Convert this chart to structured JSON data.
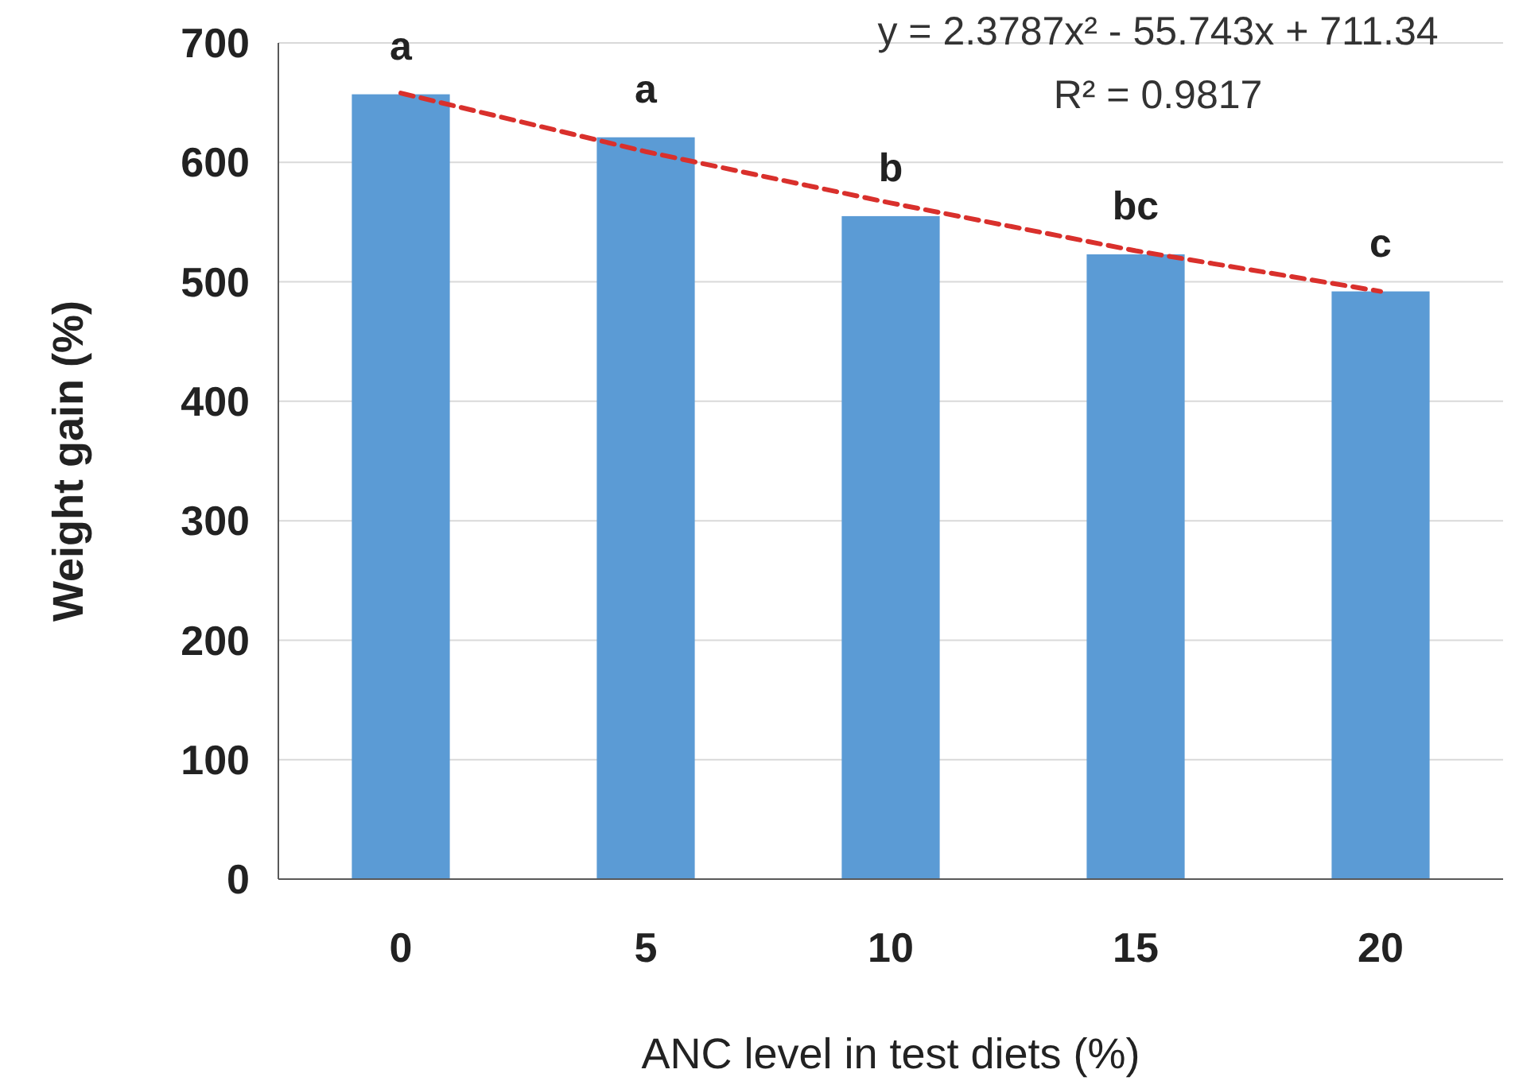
{
  "chart_data": {
    "type": "bar",
    "xlabel": "ANC level in test diets (%)",
    "ylabel": "Weight gain (%)",
    "categories": [
      "0",
      "5",
      "10",
      "15",
      "20"
    ],
    "series": [
      {
        "color": "#5b9bd5",
        "values": [
          657,
          621,
          555,
          523,
          492
        ]
      },
      {
        "type": "line",
        "color": "#d9302c",
        "line_style": "dashed",
        "x": [
          "0",
          "5",
          "10",
          "15",
          "20"
        ],
        "values": [
          658,
          609,
          566,
          526,
          492
        ]
      }
    ],
    "ylim": [
      0,
      700
    ],
    "yticks": [
      0,
      100,
      200,
      300,
      400,
      500,
      600,
      700
    ],
    "grid": "y",
    "annotations": [
      {
        "text": "a",
        "x": "0",
        "y": 657
      },
      {
        "text": "a",
        "x": "5",
        "y": 621
      },
      {
        "text": "b",
        "x": "10",
        "y": 555
      },
      {
        "text": "bc",
        "x": "15",
        "y": 523
      },
      {
        "text": "c",
        "x": "20",
        "y": 492
      },
      "y = 2.3787x² - 55.743x + 711.34",
      "R² = 0.9817"
    ]
  }
}
